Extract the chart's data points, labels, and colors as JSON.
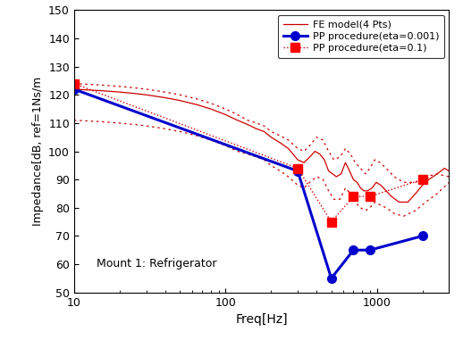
{
  "title": "",
  "xlabel": "Freq[Hz]",
  "ylabel": "Impedance[dB, ref=1Ns/m",
  "annotation": "Mount 1: Refrigerator",
  "xlim": [
    10,
    3000
  ],
  "ylim": [
    50,
    150
  ],
  "yticks": [
    50,
    60,
    70,
    80,
    90,
    100,
    110,
    120,
    130,
    140,
    150
  ],
  "xticks": [
    10,
    100,
    1000
  ],
  "legend": {
    "fe_model": "FE model(4 Pts)",
    "pp_001": "PP procedure(eta=0.001)",
    "pp_01": "PP procedure(eta=0.1)"
  },
  "fe_color": "#cc0000",
  "blue_color": "#0000cc",
  "pp_001_x": [
    10,
    300,
    500,
    700,
    900,
    2000
  ],
  "pp_001_y": [
    122,
    93,
    55,
    65,
    65,
    70
  ],
  "pp_01_x": [
    10,
    300,
    500,
    700,
    900,
    2000
  ],
  "pp_01_y": [
    124,
    94,
    75,
    84,
    84,
    90
  ],
  "fe_solid_x": [
    10,
    15,
    20,
    25,
    30,
    40,
    50,
    65,
    80,
    100,
    120,
    140,
    160,
    180,
    200,
    230,
    260,
    300,
    330,
    360,
    390,
    420,
    450,
    480,
    510,
    540,
    580,
    620,
    660,
    700,
    740,
    780,
    820,
    870,
    930,
    990,
    1060,
    1150,
    1250,
    1400,
    1600,
    1800,
    2000,
    2200,
    2500,
    2800,
    3000
  ],
  "fe_solid_y": [
    122,
    121.5,
    121,
    120.5,
    120,
    119,
    118,
    116.5,
    115,
    113,
    111,
    109.5,
    108,
    107,
    105,
    103,
    101,
    97,
    96,
    98,
    100,
    99,
    97,
    93,
    92,
    91,
    92,
    96,
    93,
    90,
    89,
    87,
    86,
    86,
    87,
    89,
    88,
    86,
    84,
    82,
    82,
    85,
    88,
    90,
    92,
    94,
    93
  ],
  "fe_dashed_upper_x": [
    10,
    15,
    20,
    25,
    30,
    40,
    50,
    65,
    80,
    100,
    120,
    140,
    160,
    180,
    200,
    230,
    260,
    300,
    330,
    360,
    400,
    440,
    480,
    520,
    570,
    620,
    670,
    720,
    780,
    840,
    900,
    970,
    1050,
    1150,
    1300,
    1500,
    1800,
    2100,
    2500,
    3000
  ],
  "fe_dashed_upper_y": [
    124,
    123.5,
    123,
    122.5,
    122,
    121,
    120,
    118.5,
    117,
    115,
    113,
    111,
    110,
    109,
    107,
    105.5,
    104,
    101,
    100,
    102,
    105,
    104,
    100,
    97,
    98,
    101,
    99,
    96,
    94,
    92,
    94,
    97,
    96,
    94,
    91,
    89,
    89,
    91,
    92,
    91
  ],
  "fe_dashed_lower_x": [
    10,
    15,
    20,
    25,
    30,
    40,
    50,
    65,
    80,
    100,
    120,
    140,
    160,
    180,
    200,
    230,
    260,
    300,
    330,
    360,
    400,
    440,
    480,
    520,
    570,
    620,
    670,
    720,
    780,
    840,
    900,
    970,
    1050,
    1150,
    1300,
    1500,
    1800,
    2100,
    2500,
    3000
  ],
  "fe_dashed_lower_y": [
    111,
    110.5,
    110,
    109.5,
    109,
    108,
    107,
    105.5,
    104,
    102,
    100,
    99,
    98,
    97,
    95,
    93,
    91,
    88,
    87,
    89,
    91,
    90,
    86,
    83,
    83,
    87,
    85,
    82,
    80,
    79,
    80,
    82,
    81,
    80,
    78,
    77,
    79,
    82,
    85,
    89
  ]
}
